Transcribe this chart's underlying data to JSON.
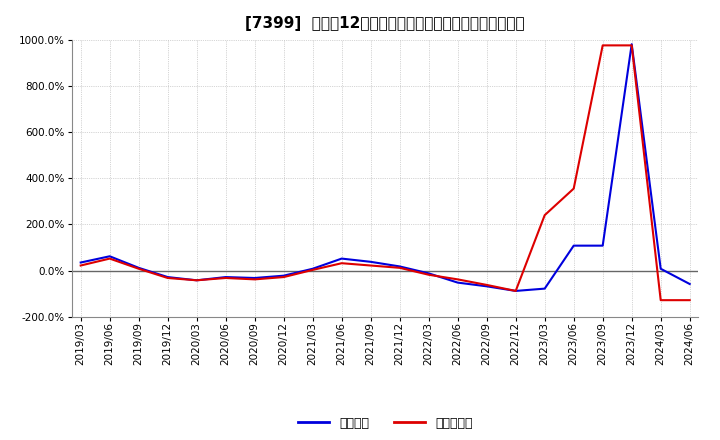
{
  "title": "[7399]  利益だ12か月移動合計の対前年同期増減率の推移",
  "ylim": [
    -200,
    1000
  ],
  "yticks": [
    -200,
    0,
    200,
    400,
    600,
    800,
    1000
  ],
  "background_color": "#ffffff",
  "grid_color": "#999999",
  "zero_line_color": "#666666",
  "x_labels": [
    "2019/03",
    "2019/06",
    "2019/09",
    "2019/12",
    "2020/03",
    "2020/06",
    "2020/09",
    "2020/12",
    "2021/03",
    "2021/06",
    "2021/09",
    "2021/12",
    "2022/03",
    "2022/06",
    "2022/09",
    "2022/12",
    "2023/03",
    "2023/06",
    "2023/09",
    "2023/12",
    "2024/03",
    "2024/06"
  ],
  "keijo_rieki": [
    35,
    62,
    12,
    -28,
    -42,
    -28,
    -32,
    -22,
    8,
    52,
    38,
    18,
    -12,
    -52,
    -68,
    -88,
    -78,
    108,
    108,
    980,
    8,
    -58
  ],
  "touki_junrieki": [
    22,
    52,
    8,
    -32,
    -42,
    -32,
    -38,
    -28,
    3,
    32,
    22,
    12,
    -18,
    -38,
    -62,
    -88,
    240,
    355,
    975,
    975,
    -128,
    -128
  ],
  "line_color_keijo": "#0000dd",
  "line_color_touki": "#dd0000",
  "legend_label_keijo": "経常利益",
  "legend_label_touki": "当期純利益",
  "title_fontsize": 11,
  "tick_fontsize": 7.5,
  "legend_fontsize": 9
}
